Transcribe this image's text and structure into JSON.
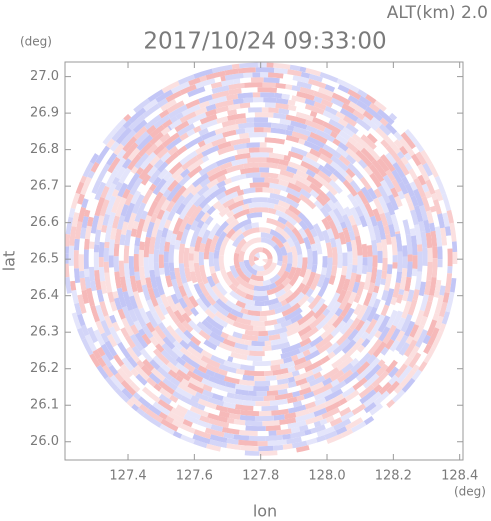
{
  "chart_data": {
    "type": "radar-ppi",
    "altitude_label": "ALT(km) 2.0",
    "title": "2017/10/24 09:33:00",
    "ylabel": "lat",
    "yunit": "(deg)",
    "xlabel": "lon",
    "xunit": "(deg)",
    "xlim": [
      127.21,
      128.41
    ],
    "ylim": [
      25.95,
      27.04
    ],
    "xticks": [
      127.4,
      127.6,
      127.8,
      {
        "value": 128.0,
        "label": "128.0"
      },
      128.2,
      128.4
    ],
    "yticks": [
      {
        "value": 26.0,
        "label": "26.0"
      },
      26.1,
      26.2,
      26.3,
      26.4,
      26.5,
      26.6,
      26.7,
      26.8,
      26.9,
      {
        "value": 27.0,
        "label": "27.0"
      }
    ],
    "center": [
      127.8,
      26.5
    ],
    "radius_deg": 0.593
  }
}
